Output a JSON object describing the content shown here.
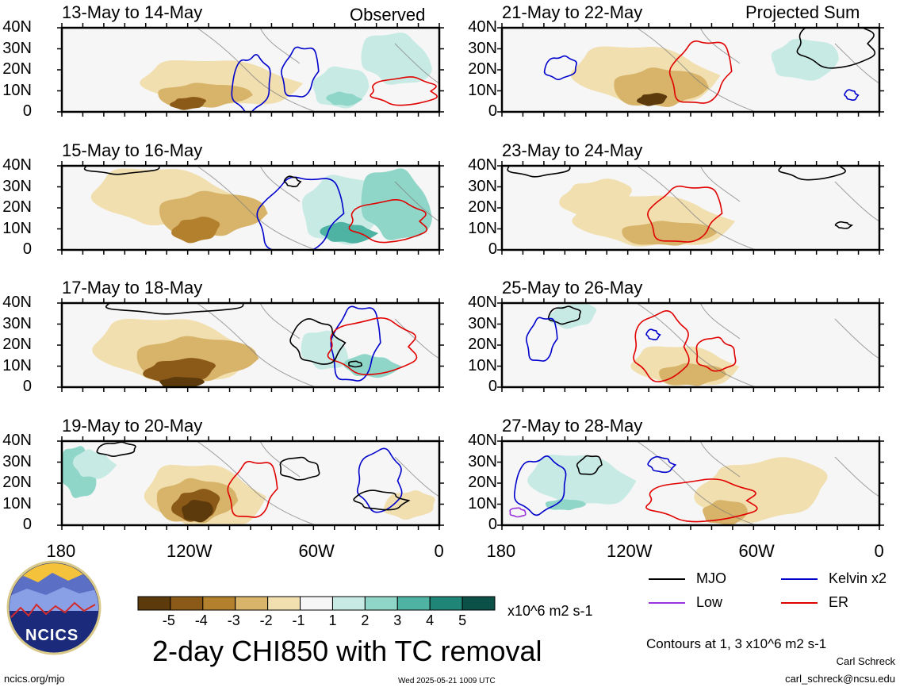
{
  "figure": {
    "title": "2-day CHI850 with TC removal",
    "left_tag": "Observed",
    "right_tag": "Projected Sum",
    "units": "x10^6 m2 s-1",
    "contour_note": "Contours at 1, 3 x10^6 m2 s-1",
    "author": "Carl Schreck",
    "email": "carl_schreck@ncsu.edu",
    "website": "ncics.org/mjo",
    "timestamp": "Wed 2025-05-21 1009 UTC",
    "logo_text": "NCICS"
  },
  "chart_data": {
    "type": "heatmap",
    "variable": "CHI850",
    "lat_ticks": [
      "40N",
      "30N",
      "20N",
      "10N",
      "0"
    ],
    "lon_ticks": [
      "180",
      "120W",
      "60W",
      "0"
    ],
    "panels_left": [
      {
        "label": "13-May to 14-May",
        "group": "Observed"
      },
      {
        "label": "15-May to 16-May",
        "group": "Observed"
      },
      {
        "label": "17-May to 18-May",
        "group": "Observed"
      },
      {
        "label": "19-May to 20-May",
        "group": "Observed"
      }
    ],
    "panels_right": [
      {
        "label": "21-May to 22-May",
        "group": "Projected Sum"
      },
      {
        "label": "23-May to 24-May",
        "group": "Projected Sum"
      },
      {
        "label": "25-May to 26-May",
        "group": "Projected Sum"
      },
      {
        "label": "27-May to 28-May",
        "group": "Projected Sum"
      }
    ],
    "colorbar": {
      "ticks": [
        "-5",
        "-4",
        "-3",
        "-2",
        "-1",
        "1",
        "2",
        "3",
        "4",
        "5"
      ],
      "colors": [
        "#5c3a0b",
        "#8c5a18",
        "#b3802d",
        "#d8b46a",
        "#f1dfb0",
        "#f6f6f6",
        "#c7ebe4",
        "#8fd6c8",
        "#4fb3a3",
        "#1f8576",
        "#0b5148"
      ]
    },
    "legend": [
      {
        "name": "MJO",
        "color": "#000000"
      },
      {
        "name": "Kelvin x2",
        "color": "#0000cc"
      },
      {
        "name": "Low",
        "color": "#9933dd"
      },
      {
        "name": "ER",
        "color": "#e00000"
      }
    ]
  }
}
